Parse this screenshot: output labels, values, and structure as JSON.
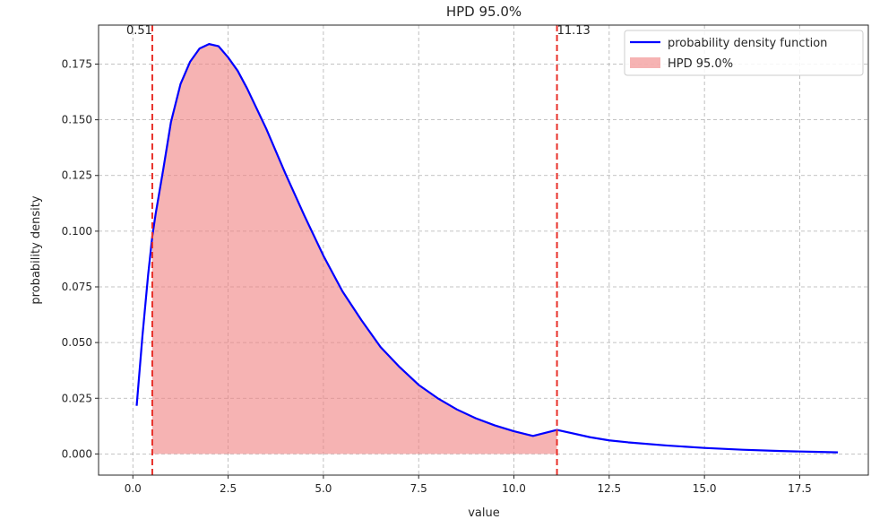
{
  "chart_data": {
    "type": "line",
    "title": "HPD 95.0%",
    "xlabel": "value",
    "ylabel": "probability density",
    "xlim": [
      -0.9,
      19.3
    ],
    "ylim": [
      -0.0095,
      0.1925
    ],
    "xticks": [
      0.0,
      2.5,
      5.0,
      7.5,
      10.0,
      12.5,
      15.0,
      17.5
    ],
    "xtick_labels": [
      "0.0",
      "2.5",
      "5.0",
      "7.5",
      "10.0",
      "12.5",
      "15.0",
      "17.5"
    ],
    "yticks": [
      0.0,
      0.025,
      0.05,
      0.075,
      0.1,
      0.125,
      0.15,
      0.175
    ],
    "ytick_labels": [
      "0.000",
      "0.025",
      "0.050",
      "0.075",
      "0.100",
      "0.125",
      "0.150",
      "0.175"
    ],
    "grid": true,
    "legend_position": "top-right",
    "series": [
      {
        "name": "probability density function",
        "color": "#0000ff",
        "x": [
          0.1,
          0.25,
          0.4,
          0.51,
          0.6,
          0.8,
          1.0,
          1.25,
          1.5,
          1.75,
          2.0,
          2.25,
          2.5,
          2.75,
          3.0,
          3.5,
          4.0,
          4.5,
          5.0,
          5.5,
          6.0,
          6.5,
          7.0,
          7.5,
          8.0,
          8.5,
          9.0,
          9.5,
          10.0,
          10.5,
          11.13,
          12.0,
          12.5,
          13.0,
          14.0,
          15.0,
          16.0,
          17.0,
          18.0,
          18.5
        ],
        "y": [
          0.0216,
          0.0527,
          0.0803,
          0.0977,
          0.108,
          0.128,
          0.149,
          0.166,
          0.176,
          0.182,
          0.184,
          0.183,
          0.178,
          0.172,
          0.164,
          0.146,
          0.126,
          0.107,
          0.089,
          0.073,
          0.06,
          0.048,
          0.039,
          0.031,
          0.025,
          0.02,
          0.016,
          0.0128,
          0.0102,
          0.0081,
          0.0108,
          0.0075,
          0.0061,
          0.0052,
          0.0038,
          0.0027,
          0.0019,
          0.0013,
          0.0009,
          0.0007
        ]
      }
    ],
    "hpd": {
      "name": "HPD 95.0%",
      "lower": 0.51,
      "upper": 11.13,
      "lower_label": "0.51",
      "upper_label": "11.13",
      "fill_color": "#f08080",
      "line_color": "#e8312a"
    }
  }
}
